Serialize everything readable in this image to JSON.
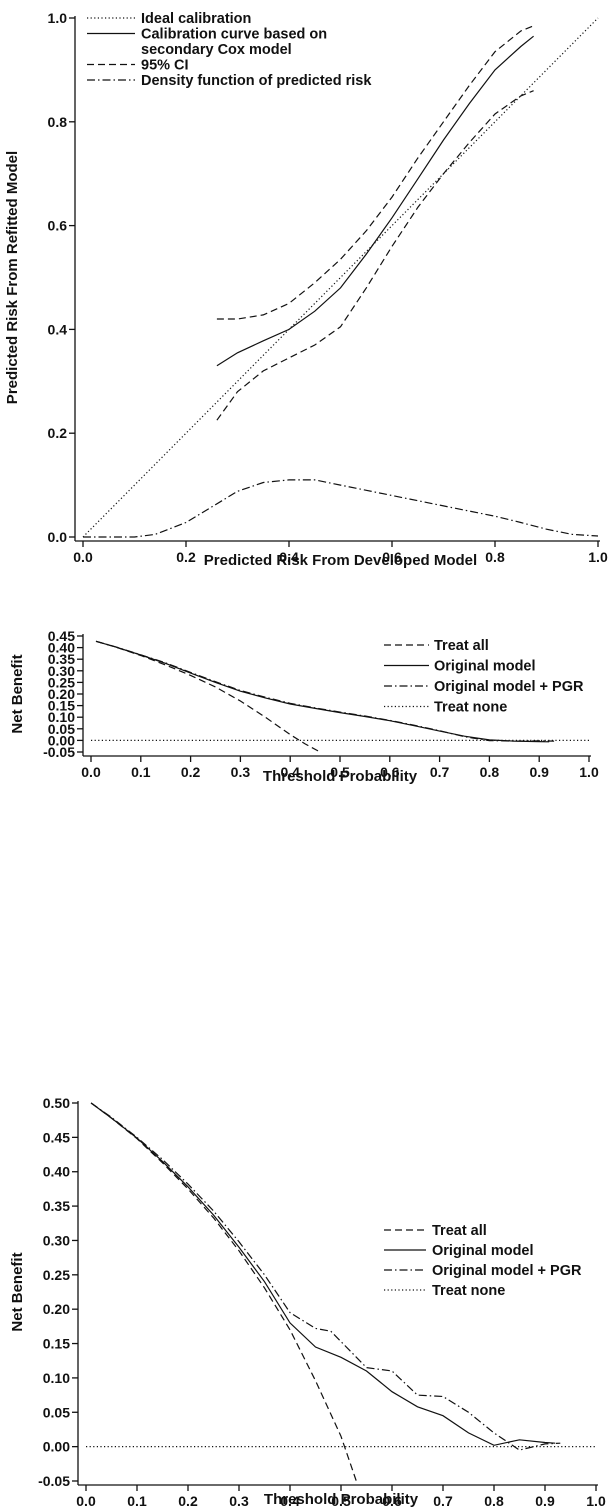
{
  "chart_data": [
    {
      "type": "line",
      "title": "",
      "xlabel": "Predicted Risk From Developed Model",
      "ylabel": "Predicted Risk From Refitted Model",
      "xlim": [
        0,
        1
      ],
      "ylim": [
        0,
        1
      ],
      "x_ticks": [
        "0.0",
        "0.2",
        "0.4",
        "0.6",
        "0.8",
        "1.0"
      ],
      "y_ticks": [
        "0.0",
        "0.2",
        "0.4",
        "0.6",
        "0.8",
        "1.0"
      ],
      "grid": false,
      "legend_position": "top-left",
      "series": [
        {
          "name": "Ideal calibration",
          "style": "dotted",
          "x": [
            0,
            1
          ],
          "y": [
            0,
            1
          ]
        },
        {
          "name": "Calibration curve based on secondary Cox model",
          "style": "solid",
          "x": [
            0.26,
            0.3,
            0.35,
            0.4,
            0.45,
            0.5,
            0.55,
            0.6,
            0.65,
            0.7,
            0.75,
            0.8,
            0.85,
            0.875
          ],
          "y": [
            0.33,
            0.355,
            0.378,
            0.4,
            0.435,
            0.48,
            0.545,
            0.615,
            0.69,
            0.765,
            0.835,
            0.9,
            0.945,
            0.965
          ]
        },
        {
          "name": "95% CI",
          "style": "dashed",
          "x": [
            0.26,
            0.3,
            0.35,
            0.4,
            0.45,
            0.5,
            0.55,
            0.6,
            0.65,
            0.7,
            0.75,
            0.8,
            0.85,
            0.875
          ],
          "y": [
            0.42,
            0.42,
            0.428,
            0.45,
            0.49,
            0.535,
            0.59,
            0.655,
            0.73,
            0.8,
            0.87,
            0.935,
            0.975,
            0.985
          ]
        },
        {
          "name": "",
          "style": "dashed",
          "x": [
            0.26,
            0.3,
            0.35,
            0.4,
            0.45,
            0.5,
            0.55,
            0.6,
            0.65,
            0.7,
            0.75,
            0.8,
            0.85,
            0.875
          ],
          "y": [
            0.225,
            0.28,
            0.32,
            0.345,
            0.37,
            0.405,
            0.48,
            0.56,
            0.635,
            0.7,
            0.76,
            0.815,
            0.85,
            0.86
          ]
        },
        {
          "name": "Density function of predicted risk",
          "style": "dashdot",
          "x": [
            0,
            0.1,
            0.14,
            0.2,
            0.25,
            0.3,
            0.35,
            0.4,
            0.45,
            0.5,
            0.55,
            0.6,
            0.65,
            0.7,
            0.75,
            0.8,
            0.85,
            0.9,
            0.95,
            1.0
          ],
          "y": [
            0,
            0,
            0.005,
            0.028,
            0.058,
            0.088,
            0.105,
            0.11,
            0.11,
            0.1,
            0.09,
            0.08,
            0.07,
            0.06,
            0.05,
            0.04,
            0.028,
            0.015,
            0.005,
            0.002
          ]
        }
      ]
    },
    {
      "type": "line",
      "title": "",
      "xlabel": "Threshold Probability",
      "ylabel": "Net Benefit",
      "xlim": [
        0,
        1
      ],
      "ylim": [
        -0.05,
        0.45
      ],
      "x_ticks": [
        "0.0",
        "0.1",
        "0.2",
        "0.3",
        "0.4",
        "0.5",
        "0.6",
        "0.7",
        "0.8",
        "0.9",
        "1.0"
      ],
      "y_ticks": [
        "-0.05",
        "0.00",
        "0.05",
        "0.10",
        "0.15",
        "0.20",
        "0.25",
        "0.30",
        "0.35",
        "0.40",
        "0.45"
      ],
      "grid": false,
      "legend_position": "top-right",
      "series": [
        {
          "name": "Treat all",
          "style": "dashed",
          "x": [
            0.01,
            0.05,
            0.1,
            0.15,
            0.2,
            0.25,
            0.3,
            0.35,
            0.4,
            0.43,
            0.46
          ],
          "y": [
            0.427,
            0.402,
            0.366,
            0.325,
            0.28,
            0.23,
            0.17,
            0.1,
            0.025,
            -0.015,
            -0.05
          ]
        },
        {
          "name": "Original model",
          "style": "solid",
          "x": [
            0.01,
            0.05,
            0.1,
            0.15,
            0.2,
            0.25,
            0.3,
            0.35,
            0.4,
            0.45,
            0.5,
            0.55,
            0.6,
            0.65,
            0.7,
            0.75,
            0.8,
            0.85,
            0.9,
            0.92
          ],
          "y": [
            0.427,
            0.402,
            0.368,
            0.332,
            0.29,
            0.25,
            0.212,
            0.183,
            0.157,
            0.138,
            0.12,
            0.103,
            0.085,
            0.063,
            0.04,
            0.018,
            0.002,
            -0.003,
            -0.005,
            -0.006
          ]
        },
        {
          "name": "Original model + PGR",
          "style": "dashdot",
          "x": [
            0.01,
            0.05,
            0.1,
            0.15,
            0.2,
            0.25,
            0.3,
            0.35,
            0.4,
            0.45,
            0.5,
            0.55,
            0.6,
            0.65,
            0.7,
            0.75,
            0.8,
            0.85,
            0.9,
            0.93
          ],
          "y": [
            0.427,
            0.403,
            0.369,
            0.334,
            0.293,
            0.253,
            0.215,
            0.186,
            0.16,
            0.14,
            0.122,
            0.105,
            0.086,
            0.065,
            0.042,
            0.016,
            -0.001,
            -0.003,
            -0.002,
            -0.003
          ]
        },
        {
          "name": "Treat none",
          "style": "dotted",
          "x": [
            0,
            1
          ],
          "y": [
            0,
            0
          ]
        }
      ]
    },
    {
      "type": "line",
      "title": "",
      "xlabel": "Threshold Probability",
      "ylabel": "Net Benefit",
      "xlim": [
        0,
        1
      ],
      "ylim": [
        -0.05,
        0.5
      ],
      "x_ticks": [
        "0.0",
        "0.1",
        "0.2",
        "0.3",
        "0.4",
        "0.5",
        "0.6",
        "0.7",
        "0.8",
        "0.9",
        "1.0"
      ],
      "y_ticks": [
        "-0.05",
        "0.00",
        "0.05",
        "0.10",
        "0.15",
        "0.20",
        "0.25",
        "0.30",
        "0.35",
        "0.40",
        "0.45",
        "0.50"
      ],
      "grid": false,
      "legend_position": "top-right",
      "series": [
        {
          "name": "Treat all",
          "style": "dashed",
          "x": [
            0.01,
            0.05,
            0.1,
            0.15,
            0.2,
            0.25,
            0.3,
            0.35,
            0.4,
            0.45,
            0.5,
            0.53
          ],
          "y": [
            0.5,
            0.478,
            0.448,
            0.413,
            0.375,
            0.333,
            0.285,
            0.231,
            0.17,
            0.096,
            0.015,
            -0.05
          ]
        },
        {
          "name": "Original model",
          "style": "solid",
          "x": [
            0.01,
            0.05,
            0.1,
            0.15,
            0.2,
            0.25,
            0.3,
            0.35,
            0.4,
            0.45,
            0.5,
            0.55,
            0.6,
            0.65,
            0.7,
            0.75,
            0.8,
            0.85,
            0.9,
            0.92
          ],
          "y": [
            0.5,
            0.478,
            0.449,
            0.415,
            0.378,
            0.337,
            0.29,
            0.24,
            0.18,
            0.145,
            0.13,
            0.11,
            0.08,
            0.058,
            0.045,
            0.02,
            0.002,
            0.01,
            0.006,
            0.005
          ]
        },
        {
          "name": "Original model + PGR",
          "style": "dashdot",
          "x": [
            0.01,
            0.05,
            0.1,
            0.15,
            0.2,
            0.25,
            0.3,
            0.35,
            0.4,
            0.45,
            0.48,
            0.55,
            0.6,
            0.65,
            0.7,
            0.75,
            0.8,
            0.85,
            0.9,
            0.93
          ],
          "y": [
            0.5,
            0.479,
            0.45,
            0.418,
            0.382,
            0.343,
            0.298,
            0.25,
            0.195,
            0.172,
            0.168,
            0.115,
            0.11,
            0.075,
            0.073,
            0.05,
            0.02,
            -0.005,
            0.004,
            0.005
          ]
        },
        {
          "name": "Treat none",
          "style": "dotted",
          "x": [
            0,
            1
          ],
          "y": [
            0,
            0
          ]
        }
      ]
    }
  ]
}
